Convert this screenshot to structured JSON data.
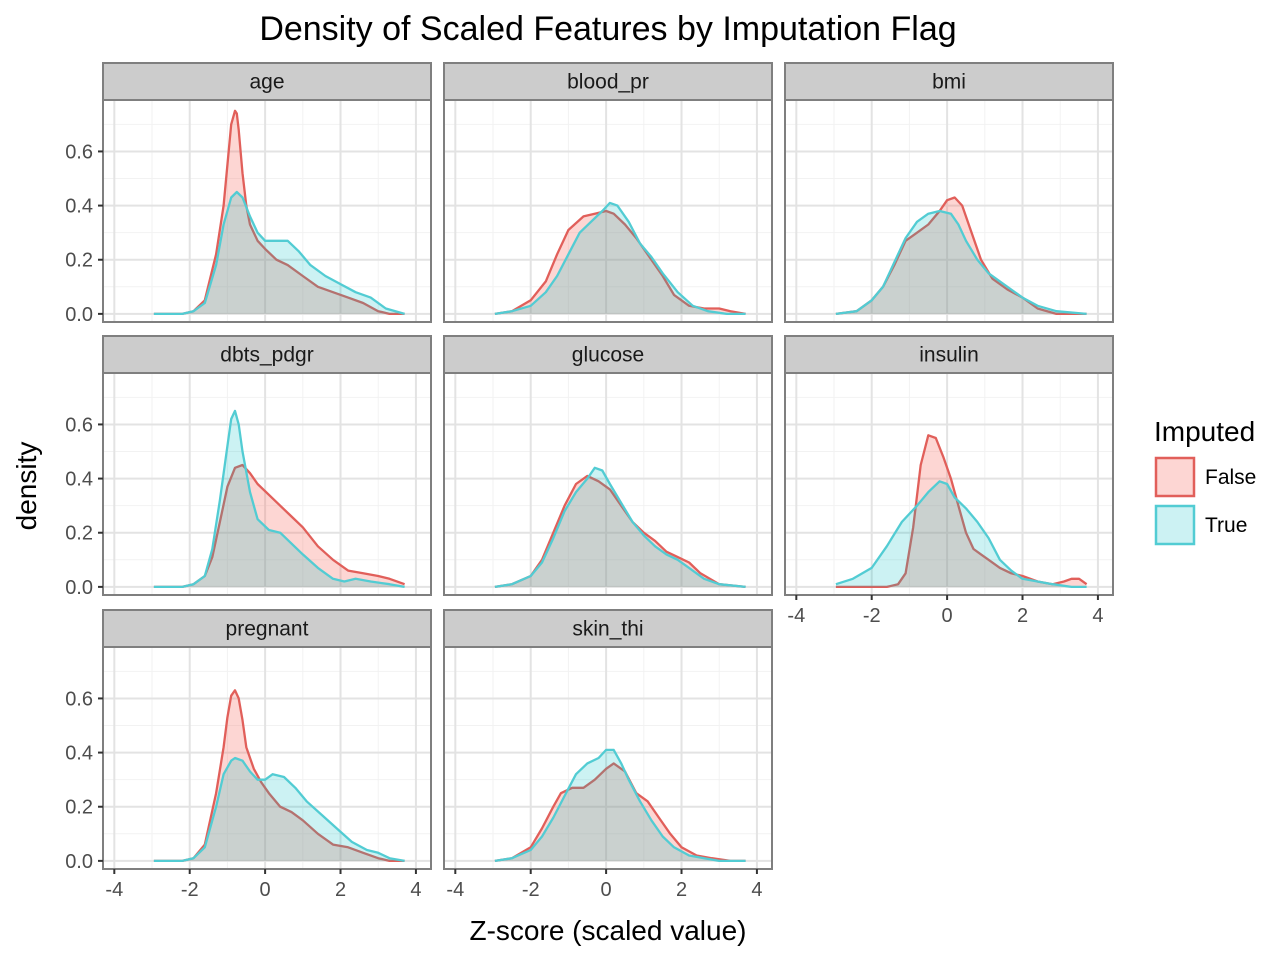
{
  "chart_data": {
    "type": "area",
    "title": "Density of Scaled Features by Imputation Flag",
    "xlabel": "Z-score (scaled value)",
    "ylabel": "density",
    "xlim": [
      -4.3,
      4.4
    ],
    "ylim": [
      -0.03,
      0.79
    ],
    "x_ticks": [
      -4,
      -2,
      0,
      2,
      4
    ],
    "x_tick_labels": [
      "-4",
      "-2",
      "0",
      "2",
      "4"
    ],
    "y_ticks": [
      0.0,
      0.2,
      0.4,
      0.6
    ],
    "y_tick_labels": [
      "0.0",
      "0.2",
      "0.4",
      "0.6"
    ],
    "grid": true,
    "legend": {
      "title": "Imputed",
      "position": "right",
      "entries": [
        {
          "label": "False",
          "color": "#E15F5A",
          "fill": "#F8766D"
        },
        {
          "label": "True",
          "color": "#52CCD3",
          "fill": "#00BFC4"
        }
      ]
    },
    "panels": [
      {
        "name": "age",
        "series": [
          {
            "name": "False",
            "x": [
              -2.95,
              -2.2,
              -1.9,
              -1.6,
              -1.3,
              -1.1,
              -1.0,
              -0.9,
              -0.8,
              -0.75,
              -0.7,
              -0.6,
              -0.5,
              -0.4,
              -0.2,
              0.0,
              0.3,
              0.6,
              1.0,
              1.4,
              1.8,
              2.2,
              2.6,
              3.0,
              3.3,
              3.7
            ],
            "y": [
              0.0,
              0.0,
              0.01,
              0.05,
              0.22,
              0.4,
              0.55,
              0.7,
              0.75,
              0.74,
              0.68,
              0.52,
              0.4,
              0.33,
              0.27,
              0.24,
              0.2,
              0.18,
              0.14,
              0.1,
              0.08,
              0.06,
              0.04,
              0.01,
              0.0,
              0.0
            ]
          },
          {
            "name": "True",
            "x": [
              -2.95,
              -2.2,
              -1.9,
              -1.6,
              -1.3,
              -1.1,
              -0.9,
              -0.75,
              -0.6,
              -0.4,
              -0.2,
              0.0,
              0.3,
              0.6,
              0.9,
              1.2,
              1.6,
              2.0,
              2.4,
              2.8,
              3.2,
              3.7
            ],
            "y": [
              0.0,
              0.0,
              0.01,
              0.04,
              0.18,
              0.33,
              0.43,
              0.45,
              0.43,
              0.36,
              0.3,
              0.27,
              0.27,
              0.27,
              0.23,
              0.18,
              0.14,
              0.11,
              0.08,
              0.06,
              0.02,
              0.0
            ]
          }
        ]
      },
      {
        "name": "blood_pr",
        "series": [
          {
            "name": "False",
            "x": [
              -2.95,
              -2.5,
              -2.0,
              -1.6,
              -1.3,
              -1.0,
              -0.6,
              -0.3,
              0.0,
              0.2,
              0.5,
              0.8,
              1.1,
              1.5,
              1.8,
              2.2,
              2.6,
              3.0,
              3.3,
              3.7
            ],
            "y": [
              0.0,
              0.01,
              0.05,
              0.12,
              0.22,
              0.31,
              0.36,
              0.37,
              0.38,
              0.37,
              0.33,
              0.28,
              0.22,
              0.14,
              0.07,
              0.03,
              0.02,
              0.02,
              0.01,
              0.0
            ]
          },
          {
            "name": "True",
            "x": [
              -2.95,
              -2.5,
              -2.0,
              -1.6,
              -1.3,
              -1.0,
              -0.7,
              -0.4,
              -0.1,
              0.1,
              0.3,
              0.6,
              0.9,
              1.2,
              1.5,
              1.9,
              2.3,
              2.7,
              3.2,
              3.7
            ],
            "y": [
              0.0,
              0.01,
              0.03,
              0.08,
              0.14,
              0.22,
              0.3,
              0.34,
              0.38,
              0.41,
              0.4,
              0.34,
              0.26,
              0.21,
              0.15,
              0.08,
              0.03,
              0.01,
              0.0,
              0.0
            ]
          }
        ]
      },
      {
        "name": "bmi",
        "series": [
          {
            "name": "False",
            "x": [
              -2.95,
              -2.4,
              -2.0,
              -1.7,
              -1.4,
              -1.1,
              -0.8,
              -0.5,
              -0.2,
              0.0,
              0.2,
              0.4,
              0.6,
              0.9,
              1.2,
              1.6,
              2.0,
              2.4,
              2.9,
              3.7
            ],
            "y": [
              0.0,
              0.01,
              0.05,
              0.1,
              0.18,
              0.27,
              0.3,
              0.33,
              0.38,
              0.42,
              0.43,
              0.4,
              0.32,
              0.2,
              0.13,
              0.09,
              0.06,
              0.02,
              0.0,
              0.0
            ]
          },
          {
            "name": "True",
            "x": [
              -2.95,
              -2.4,
              -2.0,
              -1.7,
              -1.4,
              -1.1,
              -0.8,
              -0.5,
              -0.2,
              0.1,
              0.3,
              0.5,
              0.8,
              1.1,
              1.4,
              1.7,
              2.0,
              2.4,
              2.9,
              3.7
            ],
            "y": [
              0.0,
              0.01,
              0.05,
              0.1,
              0.19,
              0.28,
              0.34,
              0.37,
              0.38,
              0.37,
              0.33,
              0.27,
              0.2,
              0.15,
              0.12,
              0.09,
              0.06,
              0.03,
              0.01,
              0.0
            ]
          }
        ]
      },
      {
        "name": "dbts_pdgr",
        "series": [
          {
            "name": "False",
            "x": [
              -2.95,
              -2.2,
              -1.9,
              -1.6,
              -1.4,
              -1.2,
              -1.0,
              -0.8,
              -0.6,
              -0.4,
              -0.2,
              0.1,
              0.4,
              0.7,
              1.0,
              1.4,
              1.8,
              2.2,
              2.6,
              3.0,
              3.3,
              3.7
            ],
            "y": [
              0.0,
              0.0,
              0.01,
              0.04,
              0.11,
              0.24,
              0.37,
              0.44,
              0.45,
              0.42,
              0.38,
              0.34,
              0.3,
              0.26,
              0.22,
              0.15,
              0.1,
              0.06,
              0.05,
              0.04,
              0.03,
              0.01
            ]
          },
          {
            "name": "True",
            "x": [
              -2.95,
              -2.2,
              -1.9,
              -1.6,
              -1.4,
              -1.2,
              -1.0,
              -0.9,
              -0.8,
              -0.7,
              -0.6,
              -0.4,
              -0.2,
              0.1,
              0.4,
              0.7,
              1.0,
              1.4,
              1.8,
              2.1,
              2.4,
              2.8,
              3.3,
              3.7
            ],
            "y": [
              0.0,
              0.0,
              0.01,
              0.04,
              0.14,
              0.32,
              0.52,
              0.62,
              0.65,
              0.6,
              0.5,
              0.35,
              0.25,
              0.21,
              0.2,
              0.16,
              0.12,
              0.07,
              0.03,
              0.02,
              0.03,
              0.02,
              0.01,
              0.0
            ]
          }
        ]
      },
      {
        "name": "glucose",
        "series": [
          {
            "name": "False",
            "x": [
              -2.95,
              -2.5,
              -2.0,
              -1.7,
              -1.4,
              -1.1,
              -0.8,
              -0.5,
              -0.2,
              0.1,
              0.4,
              0.7,
              1.0,
              1.3,
              1.6,
              1.9,
              2.2,
              2.5,
              3.0,
              3.7
            ],
            "y": [
              0.0,
              0.01,
              0.04,
              0.1,
              0.2,
              0.3,
              0.38,
              0.41,
              0.39,
              0.36,
              0.3,
              0.24,
              0.2,
              0.17,
              0.13,
              0.11,
              0.09,
              0.05,
              0.01,
              0.0
            ]
          },
          {
            "name": "True",
            "x": [
              -2.95,
              -2.5,
              -2.0,
              -1.7,
              -1.4,
              -1.1,
              -0.8,
              -0.5,
              -0.3,
              -0.1,
              0.1,
              0.4,
              0.7,
              1.0,
              1.3,
              1.6,
              1.9,
              2.2,
              2.6,
              3.0,
              3.7
            ],
            "y": [
              0.0,
              0.01,
              0.04,
              0.09,
              0.18,
              0.28,
              0.35,
              0.4,
              0.44,
              0.43,
              0.38,
              0.31,
              0.24,
              0.19,
              0.15,
              0.12,
              0.1,
              0.07,
              0.03,
              0.01,
              0.0
            ]
          }
        ]
      },
      {
        "name": "insulin",
        "series": [
          {
            "name": "False",
            "x": [
              -2.95,
              -1.6,
              -1.3,
              -1.1,
              -0.9,
              -0.7,
              -0.5,
              -0.3,
              -0.1,
              0.1,
              0.3,
              0.5,
              0.7,
              0.9,
              1.1,
              1.4,
              1.7,
              2.0,
              2.4,
              2.8,
              3.1,
              3.3,
              3.5,
              3.7
            ],
            "y": [
              0.0,
              0.0,
              0.01,
              0.05,
              0.22,
              0.45,
              0.56,
              0.55,
              0.48,
              0.4,
              0.3,
              0.2,
              0.14,
              0.12,
              0.1,
              0.07,
              0.05,
              0.04,
              0.02,
              0.01,
              0.02,
              0.03,
              0.03,
              0.01
            ]
          },
          {
            "name": "True",
            "x": [
              -2.95,
              -2.5,
              -2.0,
              -1.6,
              -1.2,
              -0.8,
              -0.5,
              -0.2,
              0.0,
              0.2,
              0.5,
              0.8,
              1.1,
              1.4,
              1.7,
              2.0,
              2.4,
              2.8,
              3.3,
              3.7
            ],
            "y": [
              0.01,
              0.03,
              0.07,
              0.15,
              0.24,
              0.3,
              0.35,
              0.39,
              0.38,
              0.33,
              0.29,
              0.24,
              0.18,
              0.1,
              0.06,
              0.03,
              0.02,
              0.01,
              0.0,
              0.0
            ]
          }
        ]
      },
      {
        "name": "pregnant",
        "series": [
          {
            "name": "False",
            "x": [
              -2.95,
              -2.2,
              -1.9,
              -1.6,
              -1.3,
              -1.1,
              -1.0,
              -0.9,
              -0.8,
              -0.7,
              -0.6,
              -0.5,
              -0.3,
              -0.1,
              0.1,
              0.4,
              0.7,
              1.0,
              1.4,
              1.8,
              2.2,
              2.6,
              3.0,
              3.3,
              3.7
            ],
            "y": [
              0.0,
              0.0,
              0.01,
              0.06,
              0.25,
              0.42,
              0.53,
              0.61,
              0.63,
              0.6,
              0.52,
              0.42,
              0.34,
              0.29,
              0.25,
              0.2,
              0.18,
              0.15,
              0.1,
              0.06,
              0.05,
              0.03,
              0.01,
              0.0,
              0.0
            ]
          },
          {
            "name": "True",
            "x": [
              -2.95,
              -2.2,
              -1.9,
              -1.6,
              -1.3,
              -1.1,
              -0.9,
              -0.8,
              -0.6,
              -0.4,
              -0.2,
              0.0,
              0.2,
              0.5,
              0.8,
              1.1,
              1.5,
              1.9,
              2.3,
              2.7,
              3.0,
              3.3,
              3.7
            ],
            "y": [
              0.0,
              0.0,
              0.01,
              0.05,
              0.2,
              0.32,
              0.37,
              0.38,
              0.37,
              0.33,
              0.3,
              0.3,
              0.32,
              0.31,
              0.27,
              0.22,
              0.17,
              0.12,
              0.07,
              0.04,
              0.03,
              0.01,
              0.0
            ]
          }
        ]
      },
      {
        "name": "skin_thi",
        "series": [
          {
            "name": "False",
            "x": [
              -2.95,
              -2.5,
              -2.0,
              -1.7,
              -1.4,
              -1.2,
              -0.9,
              -0.6,
              -0.3,
              0.0,
              0.2,
              0.5,
              0.8,
              1.1,
              1.4,
              1.7,
              2.0,
              2.4,
              2.8,
              3.3,
              3.7
            ],
            "y": [
              0.0,
              0.01,
              0.05,
              0.12,
              0.2,
              0.25,
              0.27,
              0.27,
              0.3,
              0.34,
              0.36,
              0.33,
              0.25,
              0.22,
              0.16,
              0.1,
              0.05,
              0.02,
              0.01,
              0.0,
              0.0
            ]
          },
          {
            "name": "True",
            "x": [
              -2.95,
              -2.5,
              -2.0,
              -1.7,
              -1.4,
              -1.1,
              -0.8,
              -0.5,
              -0.2,
              0.0,
              0.2,
              0.4,
              0.6,
              0.9,
              1.2,
              1.5,
              1.8,
              2.2,
              2.6,
              3.0,
              3.7
            ],
            "y": [
              0.0,
              0.01,
              0.04,
              0.09,
              0.16,
              0.24,
              0.32,
              0.36,
              0.38,
              0.41,
              0.41,
              0.36,
              0.3,
              0.22,
              0.15,
              0.09,
              0.05,
              0.02,
              0.01,
              0.0,
              0.0
            ]
          }
        ]
      }
    ]
  }
}
